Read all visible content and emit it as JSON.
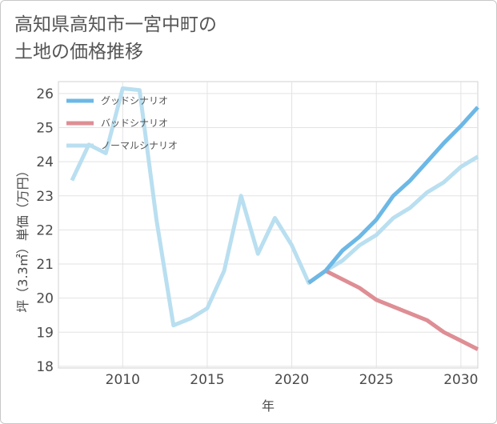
{
  "title_lines": [
    "高知県高知市一宮中町の",
    "土地の価格推移"
  ],
  "chart_data": {
    "type": "line",
    "title": "高知県高知市一宮中町の土地の価格推移",
    "xlabel": "年",
    "ylabel": "坪（3.3㎡）単価（万円）",
    "xlim": [
      2006.2,
      2031
    ],
    "ylim": [
      17.95,
      26.35
    ],
    "xticks": [
      2010,
      2015,
      2020,
      2025,
      2030
    ],
    "yticks": [
      18,
      19,
      20,
      21,
      22,
      23,
      24,
      25,
      26
    ],
    "grid": true,
    "legend_position": "top-left",
    "series": [
      {
        "name": "グッドシナリオ",
        "color": "#6cb8e6",
        "x": [
          2021,
          2022,
          2023,
          2024,
          2025,
          2026,
          2027,
          2028,
          2029,
          2030,
          2031
        ],
        "values": [
          20.45,
          20.8,
          21.4,
          21.8,
          22.3,
          23.0,
          23.45,
          24.0,
          24.55,
          25.05,
          25.6
        ]
      },
      {
        "name": "バッドシナリオ",
        "color": "#de8e94",
        "x": [
          2021,
          2022,
          2023,
          2024,
          2025,
          2026,
          2027,
          2028,
          2029,
          2030,
          2031
        ],
        "values": [
          20.45,
          20.8,
          20.55,
          20.3,
          19.95,
          19.75,
          19.55,
          19.35,
          19.0,
          18.75,
          18.5
        ]
      },
      {
        "name": "ノーマルシナリオ",
        "color": "#b9dff0",
        "x": [
          2007,
          2008,
          2009,
          2010,
          2011,
          2012,
          2013,
          2014,
          2015,
          2016,
          2017,
          2018,
          2019,
          2020,
          2021,
          2022,
          2023,
          2024,
          2025,
          2026,
          2027,
          2028,
          2029,
          2030,
          2031
        ],
        "values": [
          23.45,
          24.5,
          24.25,
          26.15,
          26.1,
          22.3,
          19.2,
          19.4,
          19.7,
          20.8,
          23.0,
          21.3,
          22.35,
          21.55,
          20.45,
          20.8,
          21.1,
          21.55,
          21.85,
          22.35,
          22.65,
          23.1,
          23.4,
          23.85,
          24.15
        ]
      }
    ]
  }
}
